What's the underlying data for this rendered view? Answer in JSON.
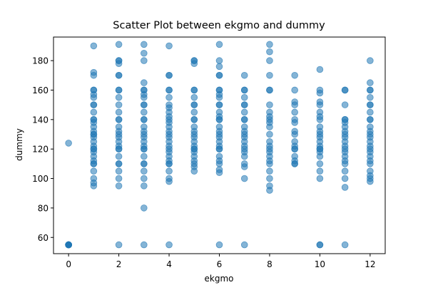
{
  "chart_data": {
    "type": "scatter",
    "title": "Scatter Plot between ekgmo and dummy",
    "xlabel": "ekgmo",
    "ylabel": "dummy",
    "xlim": [
      -0.6,
      12.6
    ],
    "ylim": [
      49,
      196
    ],
    "xticks": [
      0,
      2,
      4,
      6,
      8,
      10,
      12
    ],
    "yticks": [
      60,
      80,
      100,
      120,
      140,
      160,
      180
    ],
    "grid": false,
    "legend": "none",
    "marker_color": "#1f77b4",
    "marker_alpha": 0.55,
    "series": [
      {
        "points": [
          [
            0,
            124
          ],
          [
            0,
            55
          ],
          [
            0,
            55
          ],
          [
            0,
            55
          ],
          [
            0,
            55
          ],
          [
            0,
            55
          ],
          [
            0,
            55
          ],
          [
            1,
            190
          ],
          [
            1,
            172
          ],
          [
            1,
            170
          ],
          [
            1,
            160
          ],
          [
            1,
            160
          ],
          [
            1,
            157
          ],
          [
            1,
            155
          ],
          [
            1,
            150
          ],
          [
            1,
            150
          ],
          [
            1,
            145
          ],
          [
            1,
            140
          ],
          [
            1,
            140
          ],
          [
            1,
            138
          ],
          [
            1,
            135
          ],
          [
            1,
            132
          ],
          [
            1,
            130
          ],
          [
            1,
            130
          ],
          [
            1,
            128
          ],
          [
            1,
            125
          ],
          [
            1,
            122
          ],
          [
            1,
            120
          ],
          [
            1,
            120
          ],
          [
            1,
            118
          ],
          [
            1,
            115
          ],
          [
            1,
            112
          ],
          [
            1,
            110
          ],
          [
            1,
            110
          ],
          [
            1,
            105
          ],
          [
            1,
            100
          ],
          [
            1,
            97
          ],
          [
            1,
            95
          ],
          [
            2,
            191
          ],
          [
            2,
            180
          ],
          [
            2,
            180
          ],
          [
            2,
            178
          ],
          [
            2,
            170
          ],
          [
            2,
            170
          ],
          [
            2,
            160
          ],
          [
            2,
            160
          ],
          [
            2,
            155
          ],
          [
            2,
            150
          ],
          [
            2,
            145
          ],
          [
            2,
            140
          ],
          [
            2,
            140
          ],
          [
            2,
            135
          ],
          [
            2,
            132
          ],
          [
            2,
            130
          ],
          [
            2,
            128
          ],
          [
            2,
            125
          ],
          [
            2,
            122
          ],
          [
            2,
            120
          ],
          [
            2,
            120
          ],
          [
            2,
            115
          ],
          [
            2,
            110
          ],
          [
            2,
            110
          ],
          [
            2,
            105
          ],
          [
            2,
            100
          ],
          [
            2,
            95
          ],
          [
            2,
            55
          ],
          [
            3,
            191
          ],
          [
            3,
            185
          ],
          [
            3,
            180
          ],
          [
            3,
            165
          ],
          [
            3,
            160
          ],
          [
            3,
            160
          ],
          [
            3,
            157
          ],
          [
            3,
            155
          ],
          [
            3,
            150
          ],
          [
            3,
            150
          ],
          [
            3,
            145
          ],
          [
            3,
            140
          ],
          [
            3,
            140
          ],
          [
            3,
            135
          ],
          [
            3,
            132
          ],
          [
            3,
            130
          ],
          [
            3,
            128
          ],
          [
            3,
            125
          ],
          [
            3,
            122
          ],
          [
            3,
            120
          ],
          [
            3,
            120
          ],
          [
            3,
            115
          ],
          [
            3,
            110
          ],
          [
            3,
            110
          ],
          [
            3,
            105
          ],
          [
            3,
            100
          ],
          [
            3,
            95
          ],
          [
            3,
            80
          ],
          [
            3,
            55
          ],
          [
            4,
            190
          ],
          [
            4,
            170
          ],
          [
            4,
            170
          ],
          [
            4,
            160
          ],
          [
            4,
            160
          ],
          [
            4,
            155
          ],
          [
            4,
            150
          ],
          [
            4,
            148
          ],
          [
            4,
            145
          ],
          [
            4,
            142
          ],
          [
            4,
            140
          ],
          [
            4,
            138
          ],
          [
            4,
            135
          ],
          [
            4,
            132
          ],
          [
            4,
            130
          ],
          [
            4,
            128
          ],
          [
            4,
            125
          ],
          [
            4,
            122
          ],
          [
            4,
            120
          ],
          [
            4,
            118
          ],
          [
            4,
            115
          ],
          [
            4,
            112
          ],
          [
            4,
            110
          ],
          [
            4,
            110
          ],
          [
            4,
            105
          ],
          [
            4,
            100
          ],
          [
            4,
            98
          ],
          [
            4,
            55
          ],
          [
            5,
            180
          ],
          [
            5,
            180
          ],
          [
            5,
            178
          ],
          [
            5,
            160
          ],
          [
            5,
            160
          ],
          [
            5,
            155
          ],
          [
            5,
            150
          ],
          [
            5,
            150
          ],
          [
            5,
            145
          ],
          [
            5,
            140
          ],
          [
            5,
            140
          ],
          [
            5,
            135
          ],
          [
            5,
            132
          ],
          [
            5,
            130
          ],
          [
            5,
            128
          ],
          [
            5,
            125
          ],
          [
            5,
            122
          ],
          [
            5,
            120
          ],
          [
            5,
            120
          ],
          [
            5,
            118
          ],
          [
            5,
            115
          ],
          [
            5,
            112
          ],
          [
            5,
            110
          ],
          [
            5,
            108
          ],
          [
            5,
            105
          ],
          [
            6,
            191
          ],
          [
            6,
            180
          ],
          [
            6,
            176
          ],
          [
            6,
            170
          ],
          [
            6,
            170
          ],
          [
            6,
            160
          ],
          [
            6,
            160
          ],
          [
            6,
            157
          ],
          [
            6,
            155
          ],
          [
            6,
            150
          ],
          [
            6,
            150
          ],
          [
            6,
            145
          ],
          [
            6,
            142
          ],
          [
            6,
            140
          ],
          [
            6,
            140
          ],
          [
            6,
            135
          ],
          [
            6,
            132
          ],
          [
            6,
            130
          ],
          [
            6,
            128
          ],
          [
            6,
            125
          ],
          [
            6,
            122
          ],
          [
            6,
            120
          ],
          [
            6,
            120
          ],
          [
            6,
            115
          ],
          [
            6,
            112
          ],
          [
            6,
            110
          ],
          [
            6,
            106
          ],
          [
            6,
            104
          ],
          [
            6,
            55
          ],
          [
            7,
            170
          ],
          [
            7,
            160
          ],
          [
            7,
            160
          ],
          [
            7,
            155
          ],
          [
            7,
            150
          ],
          [
            7,
            150
          ],
          [
            7,
            145
          ],
          [
            7,
            140
          ],
          [
            7,
            140
          ],
          [
            7,
            135
          ],
          [
            7,
            132
          ],
          [
            7,
            130
          ],
          [
            7,
            128
          ],
          [
            7,
            125
          ],
          [
            7,
            122
          ],
          [
            7,
            120
          ],
          [
            7,
            118
          ],
          [
            7,
            115
          ],
          [
            7,
            110
          ],
          [
            7,
            108
          ],
          [
            7,
            100
          ],
          [
            7,
            55
          ],
          [
            8,
            191
          ],
          [
            8,
            186
          ],
          [
            8,
            180
          ],
          [
            8,
            170
          ],
          [
            8,
            160
          ],
          [
            8,
            160
          ],
          [
            8,
            150
          ],
          [
            8,
            145
          ],
          [
            8,
            142
          ],
          [
            8,
            140
          ],
          [
            8,
            138
          ],
          [
            8,
            135
          ],
          [
            8,
            130
          ],
          [
            8,
            125
          ],
          [
            8,
            122
          ],
          [
            8,
            120
          ],
          [
            8,
            118
          ],
          [
            8,
            115
          ],
          [
            8,
            112
          ],
          [
            8,
            110
          ],
          [
            8,
            105
          ],
          [
            8,
            100
          ],
          [
            8,
            95
          ],
          [
            8,
            92
          ],
          [
            9,
            170
          ],
          [
            9,
            160
          ],
          [
            9,
            152
          ],
          [
            9,
            150
          ],
          [
            9,
            145
          ],
          [
            9,
            140
          ],
          [
            9,
            138
          ],
          [
            9,
            132
          ],
          [
            9,
            130
          ],
          [
            9,
            125
          ],
          [
            9,
            122
          ],
          [
            9,
            120
          ],
          [
            9,
            120
          ],
          [
            9,
            115
          ],
          [
            9,
            112
          ],
          [
            9,
            110
          ],
          [
            9,
            110
          ],
          [
            10,
            174
          ],
          [
            10,
            160
          ],
          [
            10,
            158
          ],
          [
            10,
            152
          ],
          [
            10,
            150
          ],
          [
            10,
            145
          ],
          [
            10,
            142
          ],
          [
            10,
            140
          ],
          [
            10,
            135
          ],
          [
            10,
            132
          ],
          [
            10,
            130
          ],
          [
            10,
            128
          ],
          [
            10,
            125
          ],
          [
            10,
            122
          ],
          [
            10,
            120
          ],
          [
            10,
            120
          ],
          [
            10,
            118
          ],
          [
            10,
            115
          ],
          [
            10,
            110
          ],
          [
            10,
            105
          ],
          [
            10,
            100
          ],
          [
            10,
            55
          ],
          [
            10,
            55
          ],
          [
            11,
            160
          ],
          [
            11,
            160
          ],
          [
            11,
            150
          ],
          [
            11,
            140
          ],
          [
            11,
            140
          ],
          [
            11,
            138
          ],
          [
            11,
            135
          ],
          [
            11,
            132
          ],
          [
            11,
            130
          ],
          [
            11,
            128
          ],
          [
            11,
            125
          ],
          [
            11,
            122
          ],
          [
            11,
            120
          ],
          [
            11,
            118
          ],
          [
            11,
            115
          ],
          [
            11,
            112
          ],
          [
            11,
            110
          ],
          [
            11,
            105
          ],
          [
            11,
            100
          ],
          [
            11,
            94
          ],
          [
            11,
            55
          ],
          [
            12,
            180
          ],
          [
            12,
            165
          ],
          [
            12,
            160
          ],
          [
            12,
            160
          ],
          [
            12,
            155
          ],
          [
            12,
            150
          ],
          [
            12,
            150
          ],
          [
            12,
            145
          ],
          [
            12,
            140
          ],
          [
            12,
            140
          ],
          [
            12,
            135
          ],
          [
            12,
            132
          ],
          [
            12,
            130
          ],
          [
            12,
            128
          ],
          [
            12,
            125
          ],
          [
            12,
            122
          ],
          [
            12,
            120
          ],
          [
            12,
            118
          ],
          [
            12,
            115
          ],
          [
            12,
            112
          ],
          [
            12,
            110
          ],
          [
            12,
            105
          ],
          [
            12,
            102
          ],
          [
            12,
            100
          ],
          [
            12,
            98
          ]
        ]
      }
    ]
  }
}
